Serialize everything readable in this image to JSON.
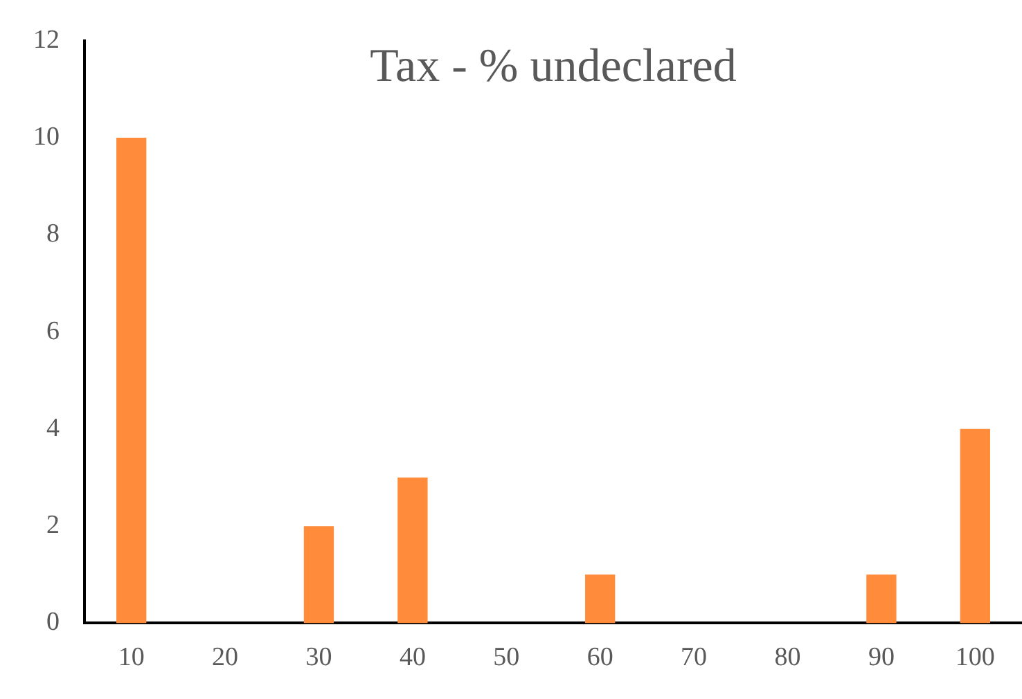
{
  "chart_data": {
    "type": "bar",
    "title": "Tax - % undeclared",
    "categories": [
      "10",
      "20",
      "30",
      "40",
      "50",
      "60",
      "70",
      "80",
      "90",
      "100"
    ],
    "values": [
      10,
      0,
      2,
      3,
      0,
      1,
      0,
      0,
      1,
      4
    ],
    "color": "#ff8b3b",
    "ylim": [
      0,
      12
    ],
    "yticks": [
      0,
      2,
      4,
      6,
      8,
      10,
      12
    ],
    "grid": false,
    "legend": false
  }
}
